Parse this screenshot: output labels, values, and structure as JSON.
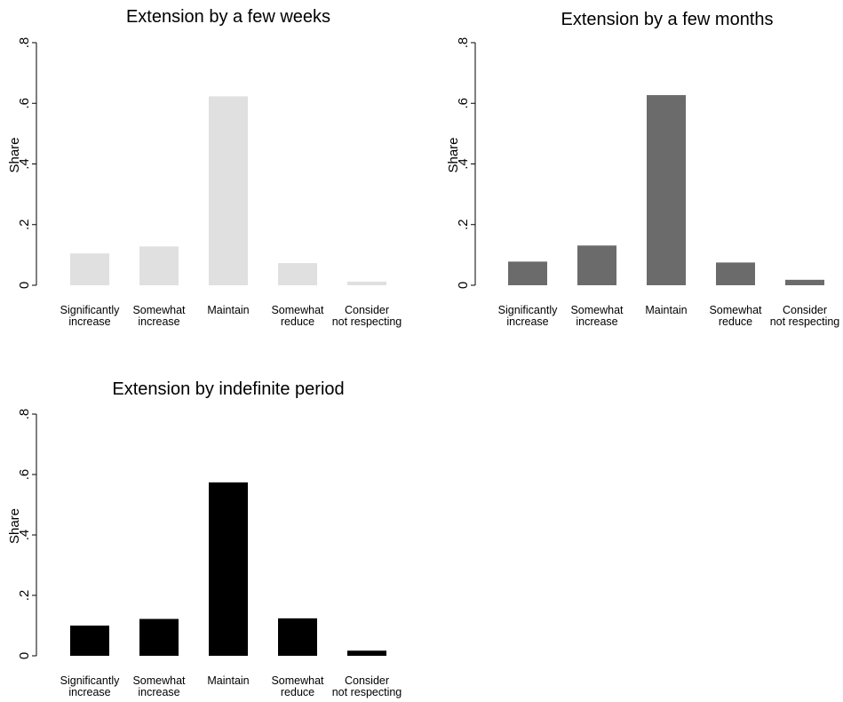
{
  "chart_data": [
    {
      "type": "bar",
      "title": "Extension by a few weeks",
      "ylabel": "Share",
      "xlabel": "",
      "ylim": [
        0,
        0.8
      ],
      "yticks": [
        0,
        0.2,
        0.4,
        0.6,
        0.8
      ],
      "ytick_labels": [
        "0",
        ".2",
        ".4",
        ".6",
        ".8"
      ],
      "categories": [
        [
          "Significantly",
          "increase"
        ],
        [
          "Somewhat",
          "increase"
        ],
        [
          "Maintain"
        ],
        [
          "Somewhat",
          "reduce"
        ],
        [
          "Consider",
          "not respecting"
        ]
      ],
      "values": [
        0.105,
        0.128,
        0.623,
        0.073,
        0.012
      ],
      "bar_color": "#e0e0e0",
      "grid": false
    },
    {
      "type": "bar",
      "title": "Extension by a few months",
      "ylabel": "Share",
      "xlabel": "",
      "ylim": [
        0,
        0.8
      ],
      "yticks": [
        0,
        0.2,
        0.4,
        0.6,
        0.8
      ],
      "ytick_labels": [
        "0",
        ".2",
        ".4",
        ".6",
        ".8"
      ],
      "categories": [
        [
          "Significantly",
          "increase"
        ],
        [
          "Somewhat",
          "increase"
        ],
        [
          "Maintain"
        ],
        [
          "Somewhat",
          "reduce"
        ],
        [
          "Consider",
          "not respecting"
        ]
      ],
      "values": [
        0.078,
        0.131,
        0.627,
        0.075,
        0.018
      ],
      "bar_color": "#6b6b6b",
      "grid": false
    },
    {
      "type": "bar",
      "title": "Extension by indefinite period",
      "ylabel": "Share",
      "xlabel": "",
      "ylim": [
        0,
        0.8
      ],
      "yticks": [
        0,
        0.2,
        0.4,
        0.6,
        0.8
      ],
      "ytick_labels": [
        "0",
        ".2",
        ".4",
        ".6",
        ".8"
      ],
      "categories": [
        [
          "Significantly",
          "increase"
        ],
        [
          "Somewhat",
          "increase"
        ],
        [
          "Maintain"
        ],
        [
          "Somewhat",
          "reduce"
        ],
        [
          "Consider",
          "not respecting"
        ]
      ],
      "values": [
        0.1,
        0.122,
        0.574,
        0.124,
        0.017
      ],
      "bar_color": "#000000",
      "grid": false
    }
  ]
}
